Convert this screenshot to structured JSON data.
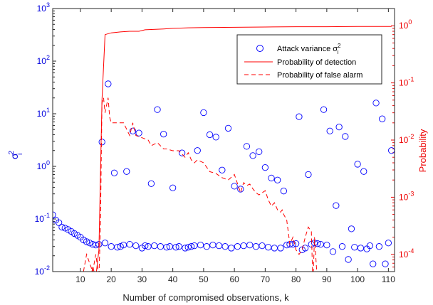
{
  "chart_data": {
    "type": "line",
    "xlabel": "Number of compromised observations, k",
    "ylabel_left": "σ",
    "ylabel_left_sup": "2",
    "ylabel_left_sub": "i",
    "ylabel_right": "Probability",
    "xlim": [
      1,
      112
    ],
    "ylim_left": [
      0.01,
      1000
    ],
    "ylim_right": [
      5e-05,
      2
    ],
    "yscale": "log",
    "x_ticks": [
      10,
      20,
      30,
      40,
      50,
      60,
      70,
      80,
      90,
      100,
      110
    ],
    "left_tick_exps": [
      -2,
      -1,
      0,
      1,
      2,
      3
    ],
    "right_tick_exps": [
      -4,
      -3,
      -2,
      -1,
      0
    ],
    "grid": false,
    "legend_position": "top-right",
    "colors": {
      "left_axis": "#0000dd",
      "right_axis": "#ee0000",
      "markers": "#0000ff",
      "lines": "#ff0000"
    },
    "legend": {
      "scatter_label": "Attack variance σ",
      "scatter_sup": "2",
      "scatter_sub": "i",
      "detection_label": "Probability of detection",
      "false_alarm_label": "Probability of false alarm"
    },
    "series": [
      {
        "name": "Attack variance σi2",
        "type": "scatter",
        "axis": "left",
        "x": [
          1,
          2,
          3,
          4,
          5,
          6,
          7,
          8,
          9,
          10,
          11,
          12,
          13,
          14,
          15,
          16,
          17,
          18,
          19,
          20,
          21,
          22,
          23,
          24,
          25,
          26,
          27,
          28,
          29,
          30,
          31,
          32,
          33,
          34,
          35,
          36,
          37,
          38,
          39,
          40,
          41,
          42,
          43,
          44,
          45,
          46,
          47,
          48,
          49,
          50,
          51,
          52,
          53,
          54,
          55,
          56,
          57,
          58,
          59,
          60,
          61,
          62,
          63,
          64,
          65,
          66,
          67,
          68,
          69,
          70,
          71,
          72,
          73,
          74,
          75,
          76,
          77,
          78,
          79,
          80,
          81,
          82,
          83,
          84,
          85,
          86,
          87,
          88,
          89,
          90,
          91,
          92,
          93,
          94,
          95,
          96,
          97,
          98,
          99,
          100,
          101,
          102,
          103,
          104,
          105,
          106,
          107,
          108,
          109,
          110,
          111
        ],
        "y": [
          0.12,
          0.095,
          0.085,
          0.07,
          0.067,
          0.063,
          0.058,
          0.053,
          0.049,
          0.045,
          0.04,
          0.037,
          0.035,
          0.033,
          0.032,
          0.033,
          2.9,
          0.035,
          37,
          0.03,
          0.75,
          0.029,
          0.03,
          0.032,
          0.8,
          0.033,
          4.7,
          0.031,
          4.3,
          0.028,
          0.031,
          0.03,
          0.47,
          0.031,
          12,
          0.03,
          4.1,
          0.029,
          0.03,
          0.39,
          0.029,
          0.03,
          1.8,
          0.028,
          0.029,
          0.03,
          0.031,
          2,
          0.032,
          10.5,
          0.03,
          4,
          0.032,
          3.6,
          0.031,
          0.85,
          0.03,
          5.3,
          0.028,
          0.42,
          0.03,
          0.37,
          0.031,
          2.4,
          0.032,
          1.6,
          0.03,
          1.9,
          0.031,
          0.95,
          0.029,
          0.6,
          0.028,
          0.55,
          0.028,
          0.34,
          0.032,
          0.033,
          0.033,
          0.034,
          8.8,
          0.026,
          0.028,
          0.7,
          0.033,
          0.035,
          0.034,
          0.033,
          12,
          0.032,
          4.7,
          0.024,
          0.18,
          5.6,
          0.03,
          3.7,
          0.017,
          0.065,
          0.029,
          1.1,
          0.028,
          0.8,
          0.027,
          0.031,
          0.014,
          16,
          0.03,
          8,
          0.014,
          0.035,
          2
        ]
      },
      {
        "name": "Probability of detection",
        "type": "line",
        "axis": "right",
        "x": [
          13,
          14,
          15,
          16,
          17,
          18,
          20,
          23,
          26,
          29,
          31,
          37,
          40,
          45,
          50,
          60,
          70,
          80,
          90,
          100,
          111
        ],
        "y": [
          3e-05,
          6e-05,
          4e-05,
          0.00012,
          0.05,
          0.7,
          0.75,
          0.78,
          0.8,
          0.8,
          0.85,
          0.88,
          0.9,
          0.92,
          0.93,
          0.94,
          0.95,
          0.96,
          0.96,
          0.97,
          0.97
        ]
      },
      {
        "name": "Probability of false alarm",
        "type": "line",
        "axis": "right",
        "x": [
          11,
          12,
          13,
          14,
          15,
          16,
          16.5,
          17,
          17.5,
          18,
          19,
          19.5,
          20,
          22,
          24,
          26,
          27,
          28,
          30,
          32,
          33,
          35,
          37,
          38,
          40,
          42,
          44,
          45,
          46,
          47,
          48,
          50,
          52,
          54,
          56,
          58,
          60,
          62,
          63,
          64,
          65,
          66,
          67,
          68,
          70,
          71,
          72,
          73,
          74,
          75,
          75.5,
          76,
          77,
          78,
          79,
          80,
          81,
          82,
          83,
          84,
          85,
          85.5,
          86,
          86.5,
          87
        ],
        "y": [
          5e-05,
          0.0001,
          7e-05,
          5e-05,
          0.0001,
          4e-05,
          0.0003,
          0.045,
          0.055,
          0.03,
          0.055,
          0.025,
          0.02,
          0.02,
          0.02,
          0.012,
          0.02,
          0.012,
          0.011,
          0.01,
          0.008,
          0.009,
          0.007,
          0.007,
          0.0065,
          0.0065,
          0.005,
          0.006,
          0.0045,
          0.004,
          0.0045,
          0.004,
          0.0028,
          0.0026,
          0.0022,
          0.002,
          0.0025,
          0.0012,
          0.0018,
          0.0016,
          0.0017,
          0.0014,
          0.0012,
          0.0011,
          0.0013,
          0.0009,
          0.0007,
          0.0008,
          0.0006,
          0.00055,
          0.0006,
          0.0005,
          0.0004,
          0.00015,
          0.0002,
          0.00012,
          0.0001,
          0.00012,
          0.0002,
          0.0003,
          0.00025,
          3e-05,
          0.0002,
          8e-05,
          3e-05
        ]
      }
    ]
  }
}
